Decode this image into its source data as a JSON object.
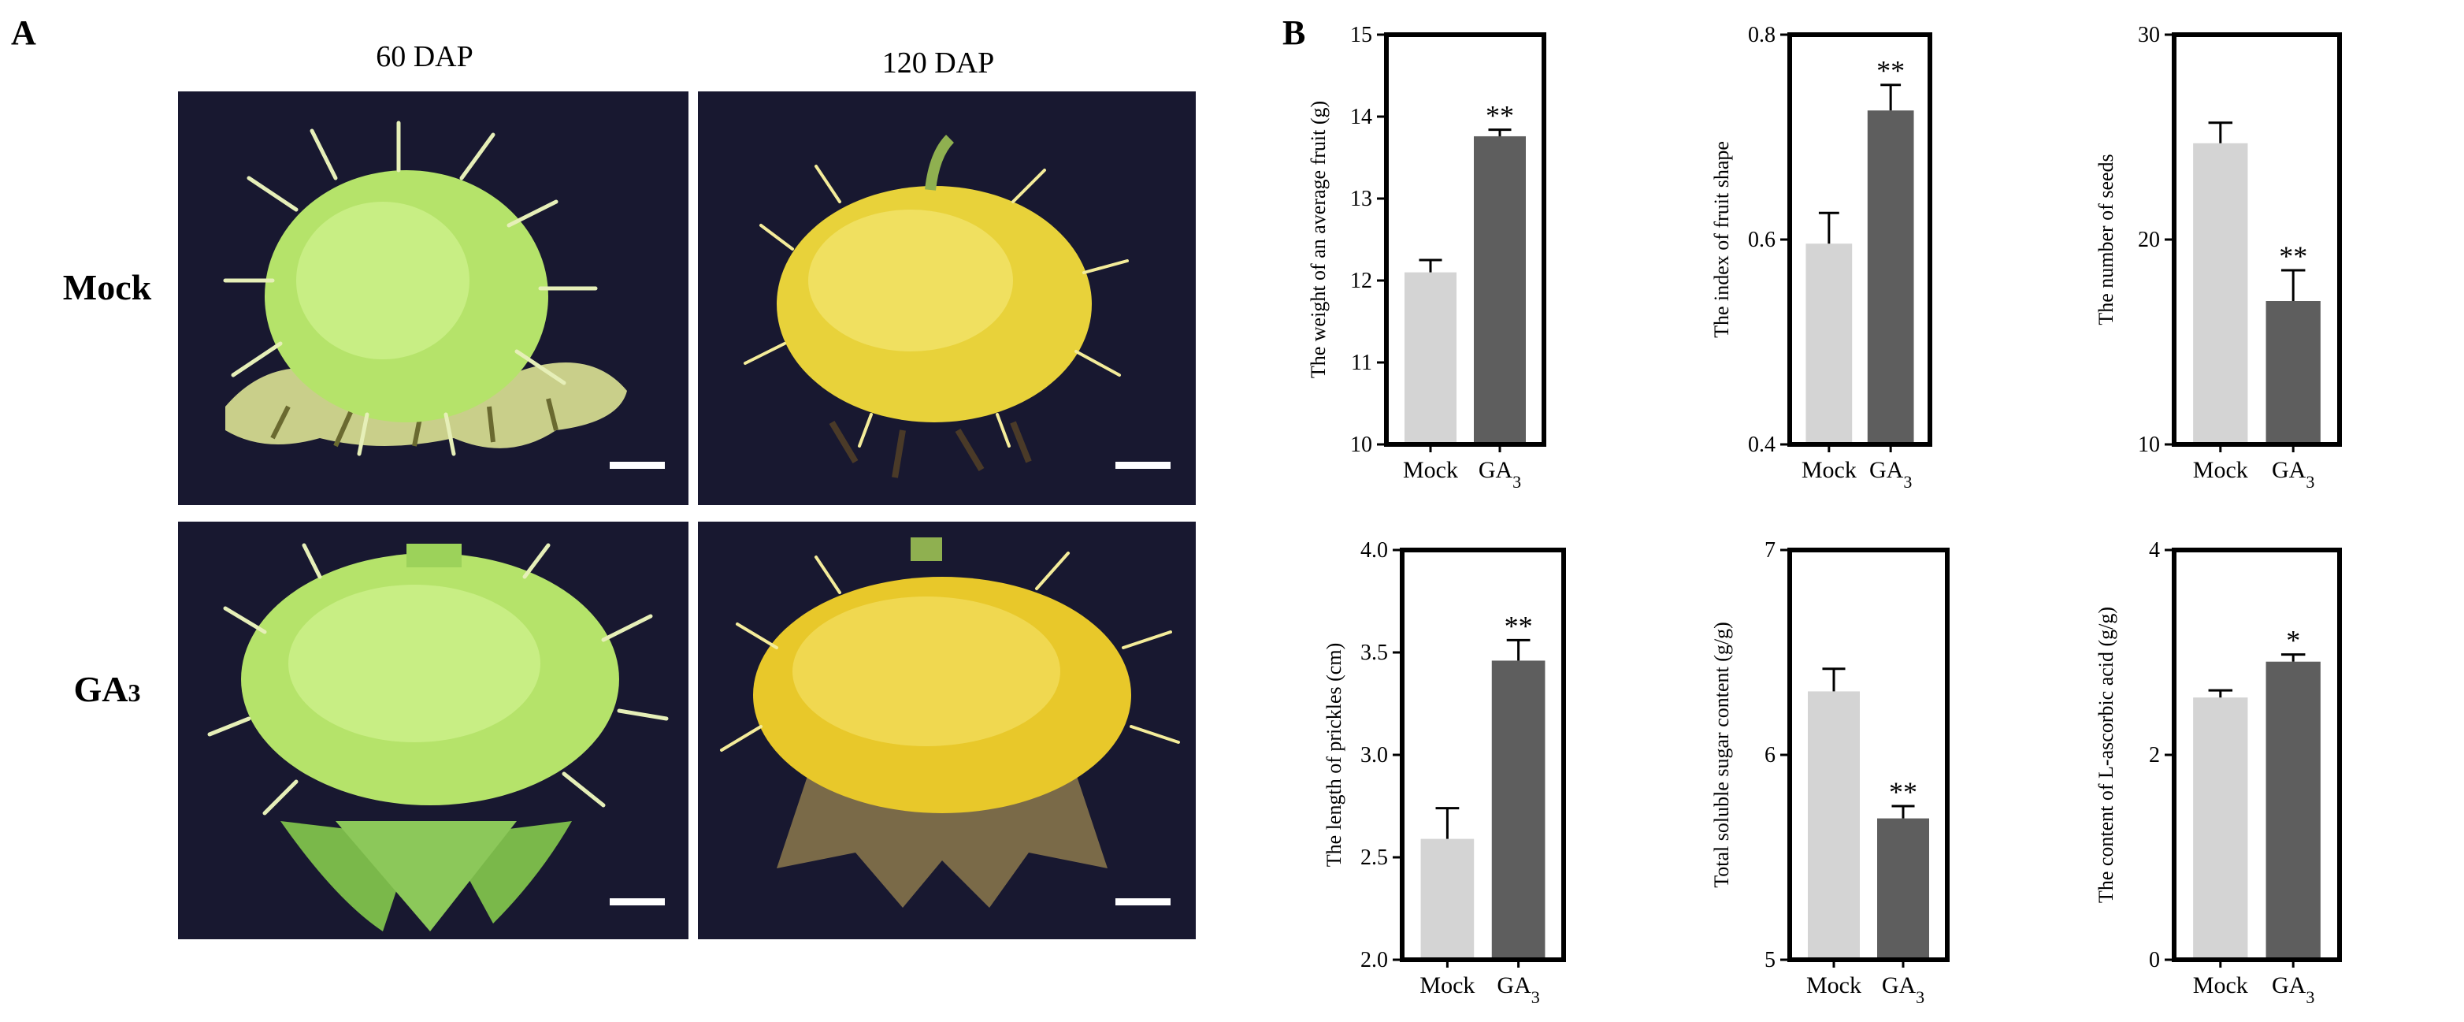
{
  "figure": {
    "panel_a_letter": "A",
    "panel_b_letter": "B",
    "column_labels": [
      "60 DAP",
      "120 DAP"
    ],
    "row_labels": [
      "Mock",
      "GA3"
    ],
    "colors": {
      "mock_bar": "#d4d4d4",
      "ga3_bar": "#5e5e5e",
      "photo_background": "#181830",
      "young_fruit": "#b5e36a",
      "mature_fruit": "#e8d23a",
      "scale_bar": "#ffffff"
    }
  },
  "chart_data": [
    {
      "type": "bar",
      "categories": [
        "Mock",
        "GA3"
      ],
      "values": [
        12.1,
        13.76
      ],
      "errors": [
        0.15,
        0.08
      ],
      "significance": [
        "",
        "**"
      ],
      "ylabel": "The weight of an average fruit (g)",
      "ylim": [
        10,
        15
      ],
      "yticks": [
        10,
        11,
        12,
        13,
        14,
        15
      ]
    },
    {
      "type": "bar",
      "categories": [
        "Mock",
        "GA3"
      ],
      "values": [
        0.596,
        0.726
      ],
      "errors": [
        0.03,
        0.025
      ],
      "significance": [
        "",
        "**"
      ],
      "ylabel": "The index of fruit shape",
      "ylim": [
        0.4,
        0.8
      ],
      "yticks": [
        0.4,
        0.6,
        0.8
      ]
    },
    {
      "type": "bar",
      "categories": [
        "Mock",
        "GA3"
      ],
      "values": [
        24.7,
        17.0
      ],
      "errors": [
        1.0,
        1.5
      ],
      "significance": [
        "",
        "**"
      ],
      "ylabel": "The number of seeds",
      "ylim": [
        10,
        30
      ],
      "yticks": [
        10,
        20,
        30
      ]
    },
    {
      "type": "bar",
      "categories": [
        "Mock",
        "GA3"
      ],
      "values": [
        2.59,
        3.46
      ],
      "errors": [
        0.15,
        0.1
      ],
      "significance": [
        "",
        "**"
      ],
      "ylabel": "The length of prickles (cm)",
      "ylim": [
        2.0,
        4.0
      ],
      "yticks": [
        2.0,
        2.5,
        3.0,
        3.5,
        4.0
      ],
      "tick_decimals": 1
    },
    {
      "type": "bar",
      "categories": [
        "Mock",
        "GA3"
      ],
      "values": [
        6.31,
        5.69
      ],
      "errors": [
        0.11,
        0.06
      ],
      "significance": [
        "",
        "**"
      ],
      "ylabel": "Total soluble sugar content (g/g)",
      "ylim": [
        5,
        7
      ],
      "yticks": [
        5,
        6,
        7
      ]
    },
    {
      "type": "bar",
      "categories": [
        "Mock",
        "GA3"
      ],
      "values": [
        2.56,
        2.91
      ],
      "errors": [
        0.07,
        0.07
      ],
      "significance": [
        "",
        "*"
      ],
      "ylabel": "The content of L-ascorbic acid (g/g)",
      "ylim": [
        0,
        4
      ],
      "yticks": [
        0,
        2,
        4
      ]
    }
  ]
}
